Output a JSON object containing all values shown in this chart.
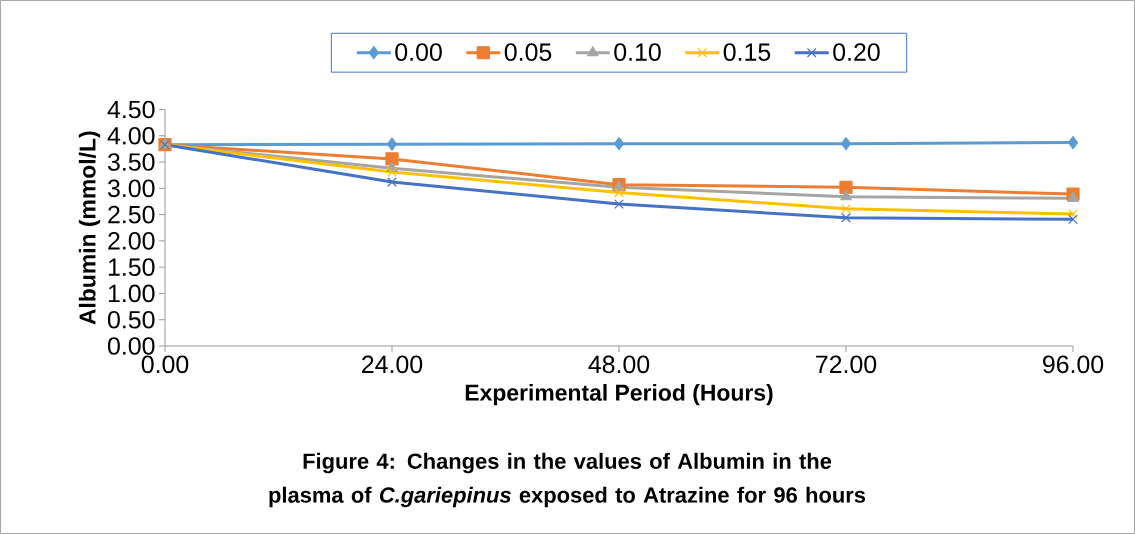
{
  "chart_data": {
    "type": "line",
    "title": "**Figure 4: Changes in the values of Albumin in the plasma of *C.gariepinus* exposed to Atrazine for 96 hours**",
    "xlabel": "Experimental Period (Hours)",
    "ylabel": "Albumin (mmol/L)",
    "x": [
      0,
      24,
      48,
      72,
      96
    ],
    "series": [
      {
        "name": "0.00",
        "color": "#5b9bd5",
        "marker": "diamond",
        "values": [
          3.83,
          3.84,
          3.85,
          3.85,
          3.87
        ]
      },
      {
        "name": "0.05",
        "color": "#ed7d31",
        "marker": "square",
        "values": [
          3.83,
          3.56,
          3.07,
          3.02,
          2.89
        ]
      },
      {
        "name": "0.10",
        "color": "#a5a5a5",
        "marker": "triangle",
        "values": [
          3.83,
          3.38,
          3.02,
          2.84,
          2.81
        ]
      },
      {
        "name": "0.15",
        "color": "#ffc000",
        "marker": "cross",
        "values": [
          3.83,
          3.31,
          2.92,
          2.61,
          2.51
        ]
      },
      {
        "name": "0.20",
        "color": "#4472c4",
        "marker": "cross",
        "values": [
          3.83,
          3.12,
          2.7,
          2.44,
          2.41
        ]
      }
    ],
    "xlim": [
      0,
      96
    ],
    "xticks": [
      {
        "value": 0,
        "label": "0.00"
      },
      {
        "value": 24,
        "label": "24.00"
      },
      {
        "value": 48,
        "label": "48.00"
      },
      {
        "value": 72,
        "label": "72.00"
      },
      {
        "value": 96,
        "label": "96.00"
      }
    ],
    "ylim": [
      0,
      4.5
    ],
    "yticks": [
      {
        "value": 0,
        "label": "0.00"
      },
      {
        "value": 0.5,
        "label": "0.50"
      },
      {
        "value": 1,
        "label": "1.00"
      },
      {
        "value": 1.5,
        "label": "1.50"
      },
      {
        "value": 2,
        "label": "2.00"
      },
      {
        "value": 2.5,
        "label": "2.50"
      },
      {
        "value": 3,
        "label": "3.00"
      },
      {
        "value": 3.5,
        "label": "3.50"
      },
      {
        "value": 4,
        "label": "4.00"
      },
      {
        "value": 4.5,
        "label": "4.50"
      }
    ],
    "legend": "top",
    "grid": false,
    "line_style": "solid"
  }
}
